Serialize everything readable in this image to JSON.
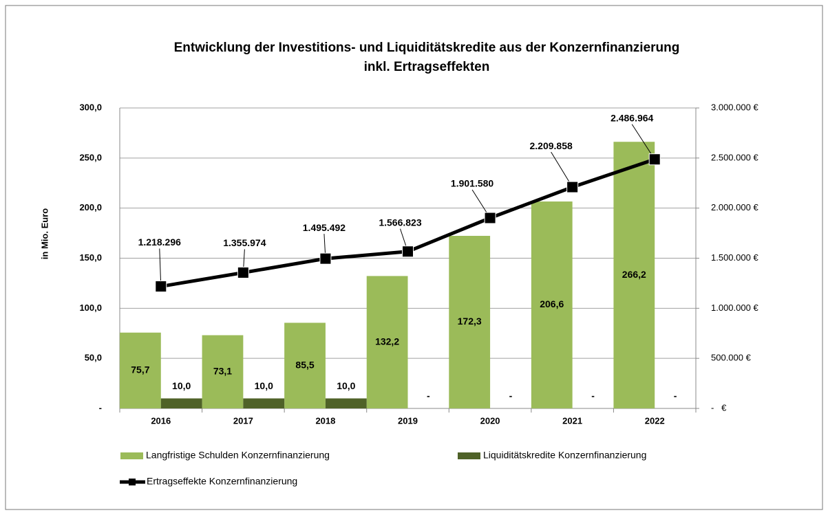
{
  "chart_data": {
    "type": "bar_line",
    "title": [
      "Entwicklung der Investitions- und Liquiditätskredite aus der Konzernfinanzierung",
      "inkl. Ertragseffekten"
    ],
    "y_axis_label": "in Mio. Euro",
    "categories": [
      "2016",
      "2017",
      "2018",
      "2019",
      "2020",
      "2021",
      "2022"
    ],
    "series": [
      {
        "name": "Langfristige Schulden Konzernfinanzierung",
        "color": "#9bbb59",
        "type": "bar",
        "values": [
          75.7,
          73.1,
          85.5,
          132.2,
          172.3,
          206.6,
          266.2
        ],
        "value_labels": [
          "75,7",
          "73,1",
          "85,5",
          "132,2",
          "172,3",
          "206,6",
          "266,2"
        ]
      },
      {
        "name": "Liquiditätskredite Konzernfinanzierung",
        "color": "#4f6228",
        "type": "bar",
        "values": [
          10,
          10,
          10,
          0,
          0,
          0,
          0
        ],
        "value_labels": [
          "10,0",
          "10,0",
          "10,0",
          "-",
          "-",
          "-",
          "-"
        ]
      },
      {
        "name": "Ertragseffekte Konzernfinanzierung",
        "color": "#000000",
        "type": "line",
        "axis": "y2",
        "values": [
          1218296,
          1355974,
          1495492,
          1566823,
          1901580,
          2209858,
          2486964
        ],
        "value_labels": [
          "1.218.296",
          "1.355.974",
          "1.495.492",
          "1.566.823",
          "1.901.580",
          "2.209.858",
          "2.486.964"
        ]
      }
    ],
    "ylim": [
      0,
      300
    ],
    "yticks": [
      {
        "value": 0,
        "label": "-"
      },
      {
        "value": 50,
        "label": "50,0"
      },
      {
        "value": 100,
        "label": "100,0"
      },
      {
        "value": 150,
        "label": "150,0"
      },
      {
        "value": 200,
        "label": "200,0"
      },
      {
        "value": 250,
        "label": "250,0"
      },
      {
        "value": 300,
        "label": "300,0"
      }
    ],
    "y2lim": [
      0,
      3000000
    ],
    "y2ticks": [
      {
        "value": 0,
        "label": "-   €"
      },
      {
        "value": 500000,
        "label": "500.000 €"
      },
      {
        "value": 1000000,
        "label": "1.000.000 €"
      },
      {
        "value": 1500000,
        "label": "1.500.000 €"
      },
      {
        "value": 2000000,
        "label": "2.000.000 €"
      },
      {
        "value": 2500000,
        "label": "2.500.000 €"
      },
      {
        "value": 3000000,
        "label": "3.000.000 €"
      }
    ],
    "grid": true
  }
}
